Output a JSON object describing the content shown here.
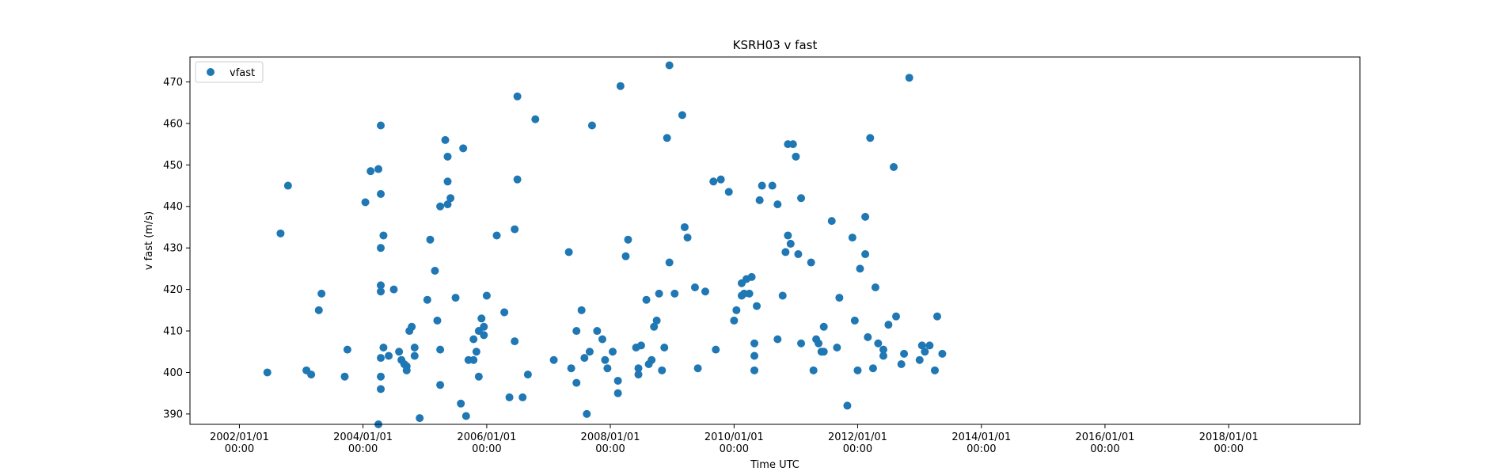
{
  "chart_data": {
    "type": "scatter",
    "title": "KSRH03 v fast",
    "xlabel": "Time UTC",
    "ylabel": "v fast (m/s)",
    "x_scale": "date",
    "xlim": [
      "2001-03-15",
      "2020-02-15"
    ],
    "ylim": [
      387.5,
      476
    ],
    "grid": false,
    "legend_placement": "top-left",
    "x_ticks": [
      {
        "date": "2002-01-01",
        "line1": "2002/01/01",
        "line2": "00:00"
      },
      {
        "date": "2004-01-01",
        "line1": "2004/01/01",
        "line2": "00:00"
      },
      {
        "date": "2006-01-01",
        "line1": "2006/01/01",
        "line2": "00:00"
      },
      {
        "date": "2008-01-01",
        "line1": "2008/01/01",
        "line2": "00:00"
      },
      {
        "date": "2010-01-01",
        "line1": "2010/01/01",
        "line2": "00:00"
      },
      {
        "date": "2012-01-01",
        "line1": "2012/01/01",
        "line2": "00:00"
      },
      {
        "date": "2014-01-01",
        "line1": "2014/01/01",
        "line2": "00:00"
      },
      {
        "date": "2016-01-01",
        "line1": "2016/01/01",
        "line2": "00:00"
      },
      {
        "date": "2018-01-01",
        "line1": "2018/01/01",
        "line2": "00:00"
      }
    ],
    "y_ticks": [
      390,
      400,
      410,
      420,
      430,
      440,
      450,
      460,
      470
    ],
    "series": [
      {
        "name": "vfast",
        "color": "#1f77b4",
        "points": [
          [
            "2002-06-15",
            400
          ],
          [
            "2002-09-01",
            433.5
          ],
          [
            "2002-10-15",
            445
          ],
          [
            "2003-02-01",
            400.5
          ],
          [
            "2003-03-01",
            399.5
          ],
          [
            "2003-04-15",
            415
          ],
          [
            "2003-05-01",
            419
          ],
          [
            "2003-09-15",
            399
          ],
          [
            "2003-10-01",
            405.5
          ],
          [
            "2004-01-15",
            441
          ],
          [
            "2004-02-15",
            448.5
          ],
          [
            "2004-04-01",
            449
          ],
          [
            "2004-04-15",
            459.5
          ],
          [
            "2004-04-15",
            443
          ],
          [
            "2004-05-01",
            433
          ],
          [
            "2004-04-15",
            430
          ],
          [
            "2004-04-15",
            421
          ],
          [
            "2004-04-15",
            419.5
          ],
          [
            "2004-04-15",
            403.5
          ],
          [
            "2004-04-15",
            399
          ],
          [
            "2004-04-15",
            396
          ],
          [
            "2004-05-01",
            406
          ],
          [
            "2004-06-01",
            404
          ],
          [
            "2004-07-01",
            420
          ],
          [
            "2004-08-01",
            405
          ],
          [
            "2004-08-15",
            403
          ],
          [
            "2004-09-01",
            402
          ],
          [
            "2004-09-15",
            401.5
          ],
          [
            "2004-10-01",
            410
          ],
          [
            "2004-10-15",
            411
          ],
          [
            "2004-11-01",
            406
          ],
          [
            "2004-11-01",
            404
          ],
          [
            "2004-12-01",
            389
          ],
          [
            "2004-04-01",
            387.5
          ],
          [
            "2005-02-01",
            432
          ],
          [
            "2005-03-01",
            424.5
          ],
          [
            "2005-04-01",
            440
          ],
          [
            "2005-05-01",
            456
          ],
          [
            "2005-05-15",
            452
          ],
          [
            "2005-05-15",
            446
          ],
          [
            "2005-01-15",
            417.5
          ],
          [
            "2005-03-15",
            412.5
          ],
          [
            "2005-04-01",
            405.5
          ],
          [
            "2005-05-15",
            440.5
          ],
          [
            "2005-06-01",
            442
          ],
          [
            "2005-07-01",
            418
          ],
          [
            "2005-08-15",
            454
          ],
          [
            "2005-09-15",
            403
          ],
          [
            "2005-10-15",
            403
          ],
          [
            "2005-11-01",
            405
          ],
          [
            "2005-11-15",
            410
          ],
          [
            "2005-12-01",
            413
          ],
          [
            "2005-12-15",
            411
          ],
          [
            "2006-01-01",
            418.5
          ],
          [
            "2005-08-01",
            392.5
          ],
          [
            "2005-09-01",
            389.5
          ],
          [
            "2005-04-01",
            397
          ],
          [
            "2004-09-15",
            400.5
          ],
          [
            "2005-11-15",
            399
          ],
          [
            "2005-10-15",
            408
          ],
          [
            "2005-12-15",
            409
          ],
          [
            "2006-03-01",
            433
          ],
          [
            "2006-04-15",
            414.5
          ],
          [
            "2006-05-15",
            394
          ],
          [
            "2006-06-15",
            407.5
          ],
          [
            "2006-06-15",
            434.5
          ],
          [
            "2006-07-01",
            446.5
          ],
          [
            "2006-07-01",
            466.5
          ],
          [
            "2006-08-01",
            394
          ],
          [
            "2006-09-01",
            399.5
          ],
          [
            "2006-10-15",
            461
          ],
          [
            "2007-02-01",
            403
          ],
          [
            "2007-05-01",
            429
          ],
          [
            "2007-06-15",
            397.5
          ],
          [
            "2007-07-15",
            415
          ],
          [
            "2007-08-01",
            403.5
          ],
          [
            "2007-08-15",
            390
          ],
          [
            "2007-09-15",
            459.5
          ],
          [
            "2007-10-15",
            410
          ],
          [
            "2007-11-15",
            408
          ],
          [
            "2007-12-15",
            401
          ],
          [
            "2008-01-15",
            405
          ],
          [
            "2008-02-15",
            395
          ],
          [
            "2008-03-01",
            469
          ],
          [
            "2008-04-01",
            428
          ],
          [
            "2008-04-15",
            432
          ],
          [
            "2008-06-01",
            406
          ],
          [
            "2008-06-15",
            399.5
          ],
          [
            "2008-07-01",
            406.5
          ],
          [
            "2008-08-01",
            417.5
          ],
          [
            "2008-09-01",
            403
          ],
          [
            "2008-09-15",
            411
          ],
          [
            "2008-10-01",
            412.5
          ],
          [
            "2008-10-15",
            419
          ],
          [
            "2008-11-01",
            400.5
          ],
          [
            "2008-11-15",
            406
          ],
          [
            "2008-12-01",
            456.5
          ],
          [
            "2008-12-15",
            474
          ],
          [
            "2008-12-15",
            426.5
          ],
          [
            "2009-01-15",
            419
          ],
          [
            "2009-03-01",
            462
          ],
          [
            "2009-03-15",
            435
          ],
          [
            "2009-04-01",
            432.5
          ],
          [
            "2007-05-15",
            401
          ],
          [
            "2007-06-15",
            410
          ],
          [
            "2007-09-01",
            405
          ],
          [
            "2007-12-01",
            403
          ],
          [
            "2008-02-15",
            398
          ],
          [
            "2008-06-15",
            401
          ],
          [
            "2008-08-15",
            402
          ],
          [
            "2009-05-15",
            420.5
          ],
          [
            "2009-06-01",
            401
          ],
          [
            "2009-07-15",
            419.5
          ],
          [
            "2009-09-01",
            446
          ],
          [
            "2009-09-15",
            405.5
          ],
          [
            "2009-10-15",
            446.5
          ],
          [
            "2009-12-01",
            443.5
          ],
          [
            "2010-01-01",
            412.5
          ],
          [
            "2010-01-15",
            415
          ],
          [
            "2010-02-15",
            418.5
          ],
          [
            "2010-02-15",
            421.5
          ],
          [
            "2010-03-01",
            419
          ],
          [
            "2010-03-15",
            422.5
          ],
          [
            "2010-04-01",
            419
          ],
          [
            "2010-04-15",
            423
          ],
          [
            "2010-05-01",
            407
          ],
          [
            "2010-05-01",
            404
          ],
          [
            "2010-05-01",
            400.5
          ],
          [
            "2010-05-15",
            416
          ],
          [
            "2010-06-01",
            441.5
          ],
          [
            "2010-06-15",
            445
          ],
          [
            "2010-08-15",
            445
          ],
          [
            "2010-09-15",
            408
          ],
          [
            "2010-09-15",
            440.5
          ],
          [
            "2010-10-15",
            418.5
          ],
          [
            "2010-11-01",
            429
          ],
          [
            "2010-11-15",
            455
          ],
          [
            "2010-11-15",
            433
          ],
          [
            "2010-12-01",
            431
          ],
          [
            "2010-12-15",
            455
          ],
          [
            "2011-01-01",
            452
          ],
          [
            "2011-01-15",
            428.5
          ],
          [
            "2011-02-01",
            442
          ],
          [
            "2011-02-01",
            407
          ],
          [
            "2011-04-01",
            426.5
          ],
          [
            "2011-04-15",
            400.5
          ],
          [
            "2011-05-01",
            408
          ],
          [
            "2011-05-15",
            407
          ],
          [
            "2011-06-01",
            405
          ],
          [
            "2011-06-15",
            411
          ],
          [
            "2011-06-15",
            405
          ],
          [
            "2011-08-01",
            436.5
          ],
          [
            "2011-09-01",
            406
          ],
          [
            "2011-09-15",
            418
          ],
          [
            "2011-11-01",
            392
          ],
          [
            "2011-12-01",
            432.5
          ],
          [
            "2011-12-15",
            412.5
          ],
          [
            "2012-01-01",
            400.5
          ],
          [
            "2012-01-15",
            425
          ],
          [
            "2012-02-15",
            428.5
          ],
          [
            "2012-02-15",
            437.5
          ],
          [
            "2012-03-01",
            408.5
          ],
          [
            "2012-03-15",
            456.5
          ],
          [
            "2012-04-01",
            401
          ],
          [
            "2012-04-15",
            420.5
          ],
          [
            "2012-05-01",
            407
          ],
          [
            "2012-06-01",
            405.5
          ],
          [
            "2012-06-01",
            404
          ],
          [
            "2012-07-01",
            411.5
          ],
          [
            "2012-08-01",
            449.5
          ],
          [
            "2012-08-15",
            413.5
          ],
          [
            "2012-09-15",
            402
          ],
          [
            "2012-10-01",
            404.5
          ],
          [
            "2012-11-01",
            471
          ],
          [
            "2013-01-01",
            403
          ],
          [
            "2013-01-15",
            406.5
          ],
          [
            "2013-02-01",
            405
          ],
          [
            "2013-03-01",
            406.5
          ],
          [
            "2013-04-01",
            400.5
          ],
          [
            "2013-04-15",
            413.5
          ],
          [
            "2013-05-15",
            404.5
          ]
        ]
      }
    ]
  }
}
